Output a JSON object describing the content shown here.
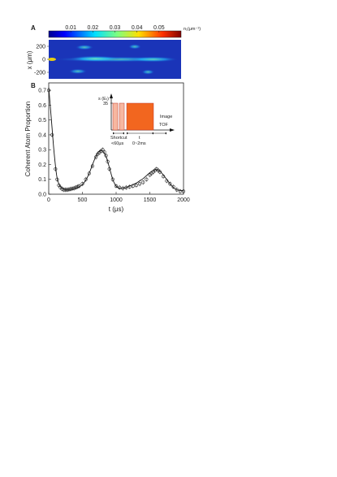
{
  "panel_a": {
    "label": "A",
    "colorbar": {
      "ticks": [
        "0.01",
        "0.02",
        "0.03",
        "0.04",
        "0.05"
      ],
      "tick_values": [
        0.01,
        0.02,
        0.03,
        0.04,
        0.05
      ],
      "range": [
        0,
        0.06
      ],
      "unit_label": "n₁(μm⁻¹)",
      "colors": [
        "#00008f",
        "#0050ff",
        "#00dfff",
        "#7fff7f",
        "#ffdf00",
        "#ff5000",
        "#8f0000"
      ]
    },
    "ylabel": "x (μm)",
    "yticks": [
      "200",
      "0",
      "-200"
    ],
    "ytick_values": [
      200,
      0,
      -200
    ],
    "yrange": [
      -300,
      300
    ],
    "background_color": "#1a34b8"
  },
  "panel_b": {
    "label": "B",
    "inset": {
      "ylabel": "s (Eᵣ)",
      "level": "35",
      "shortcut_label": "Shortcut",
      "shortcut_time": "<60μs",
      "t_label": "t",
      "t_range": "0~2ms",
      "image_label": "Image",
      "tof_label": "TOF",
      "fill_color": "#f2661f",
      "light_fill": "#f7b7a0"
    }
  },
  "chart_data": {
    "type": "scatter",
    "xlabel": "t (μs)",
    "ylabel": "Coherent Atom Proportion",
    "xlim": [
      0,
      2000
    ],
    "ylim": [
      0,
      0.75
    ],
    "xticks": [
      0,
      500,
      1000,
      1500,
      2000
    ],
    "yticks": [
      0,
      0.1,
      0.2,
      0.3,
      0.4,
      0.5,
      0.6,
      0.7
    ],
    "x": [
      0,
      50,
      100,
      125,
      150,
      175,
      200,
      225,
      250,
      275,
      300,
      325,
      350,
      375,
      400,
      425,
      450,
      500,
      550,
      600,
      650,
      700,
      725,
      750,
      775,
      800,
      825,
      850,
      875,
      900,
      950,
      1000,
      1050,
      1100,
      1150,
      1200,
      1250,
      1300,
      1350,
      1400,
      1450,
      1500,
      1525,
      1550,
      1575,
      1600,
      1625,
      1650,
      1700,
      1750,
      1800,
      1850,
      1900,
      1950,
      2000
    ],
    "y": [
      0.7,
      0.4,
      0.17,
      0.1,
      0.06,
      0.045,
      0.035,
      0.03,
      0.03,
      0.03,
      0.032,
      0.035,
      0.038,
      0.04,
      0.045,
      0.05,
      0.055,
      0.07,
      0.1,
      0.14,
      0.19,
      0.25,
      0.27,
      0.28,
      0.29,
      0.3,
      0.285,
      0.26,
      0.22,
      0.17,
      0.1,
      0.055,
      0.045,
      0.04,
      0.045,
      0.05,
      0.055,
      0.06,
      0.07,
      0.08,
      0.1,
      0.13,
      0.14,
      0.15,
      0.16,
      0.17,
      0.16,
      0.15,
      0.12,
      0.09,
      0.07,
      0.05,
      0.03,
      0.02,
      0.02
    ],
    "fit": {
      "x": [
        0,
        40,
        80,
        120,
        160,
        200,
        250,
        300,
        350,
        400,
        450,
        500,
        550,
        600,
        650,
        700,
        750,
        800,
        850,
        900,
        950,
        1000,
        1050,
        1100,
        1150,
        1200,
        1250,
        1300,
        1350,
        1400,
        1450,
        1500,
        1550,
        1600,
        1650,
        1700,
        1750,
        1800,
        1850,
        1900,
        1950,
        2000
      ],
      "y": [
        0.72,
        0.5,
        0.28,
        0.12,
        0.06,
        0.04,
        0.03,
        0.03,
        0.035,
        0.04,
        0.05,
        0.065,
        0.095,
        0.14,
        0.2,
        0.255,
        0.29,
        0.29,
        0.255,
        0.18,
        0.1,
        0.055,
        0.04,
        0.04,
        0.045,
        0.055,
        0.065,
        0.075,
        0.09,
        0.105,
        0.125,
        0.145,
        0.16,
        0.165,
        0.155,
        0.13,
        0.1,
        0.07,
        0.045,
        0.03,
        0.025,
        0.025
      ]
    },
    "streaks": [
      {
        "x": 0.02,
        "y": 0,
        "len": 0.96,
        "intensity": 0.45
      },
      {
        "x": 0.15,
        "y": 10,
        "len": 0.4,
        "intensity": 0.62
      },
      {
        "x": 0.6,
        "y": 0,
        "len": 0.38,
        "intensity": 0.5
      },
      {
        "x": 0.2,
        "y": 185,
        "len": 0.14,
        "intensity": 0.42
      },
      {
        "x": 0.6,
        "y": 195,
        "len": 0.1,
        "intensity": 0.38
      },
      {
        "x": 0.15,
        "y": -185,
        "len": 0.14,
        "intensity": 0.4
      },
      {
        "x": 0.7,
        "y": -195,
        "len": 0.1,
        "intensity": 0.36
      }
    ]
  }
}
